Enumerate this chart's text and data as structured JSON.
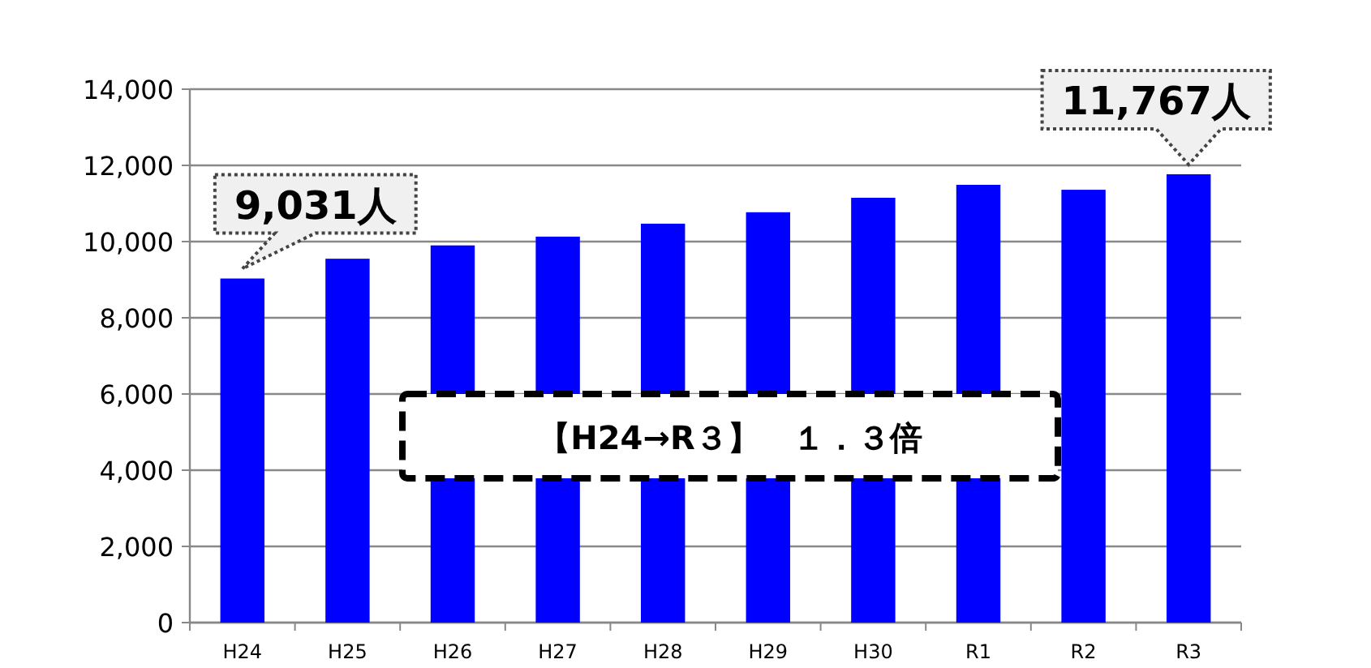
{
  "chart_data": {
    "type": "bar",
    "categories": [
      "H24",
      "H25",
      "H26",
      "H27",
      "H28",
      "H29",
      "H30",
      "R1",
      "R2",
      "R3"
    ],
    "values": [
      9031,
      9550,
      9900,
      10130,
      10470,
      10770,
      11150,
      11490,
      11360,
      11767
    ],
    "color": "#0000ff",
    "ylim": [
      0,
      14000
    ],
    "yticks": [
      0,
      {
        "value": 2000,
        "label": "2,000"
      },
      {
        "value": 4000,
        "label": "4,000"
      },
      {
        "value": 6000,
        "label": "6,000"
      },
      {
        "value": 8000,
        "label": "8,000"
      },
      {
        "value": 10000,
        "label": "10,000"
      },
      {
        "value": 12000,
        "label": "12,000"
      },
      {
        "value": 14000,
        "label": "14,000"
      }
    ],
    "grid": "y",
    "annotations": [
      {
        "text": "9,031人",
        "x": "H24",
        "y": 9031
      },
      {
        "text": "11,767人",
        "x": "R3",
        "y": 11767
      },
      "【H24→R３】　１．３倍"
    ]
  }
}
